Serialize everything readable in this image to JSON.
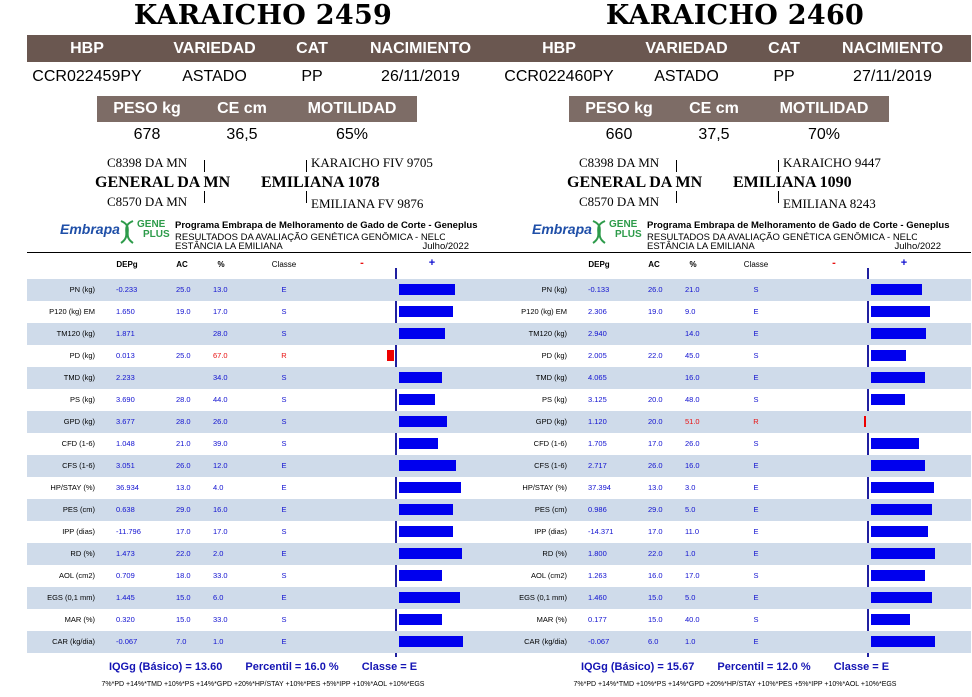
{
  "panels": [
    {
      "title": "KARAICHO 2459",
      "headers1": [
        "HBP",
        "VARIEDAD",
        "CAT",
        "NACIMIENTO"
      ],
      "values1": [
        "CCR022459PY",
        "ASTADO",
        "PP",
        "26/11/2019"
      ],
      "headers2": [
        "PESO kg",
        "CE cm",
        "MOTILIDAD"
      ],
      "values2": [
        "678",
        "36,5",
        "65%"
      ],
      "pedigree": {
        "sire_sire": "C8398 DA MN",
        "sire": "GENERAL DA MN",
        "sire_dam": "C8570 DA MN",
        "dam_sire": "KARAICHO FIV 9705",
        "dam": "EMILIANA 1078",
        "dam_dam": "EMILIANA FV 9876"
      },
      "program": {
        "logo_text": "Embrapa",
        "geneplus_1": "GENE",
        "geneplus_2": "PLUS",
        "name": "Programa Embrapa de Melhoramento de Gado de Corte - Geneplus",
        "results": "RESULTADOS DA AVALIAÇÃO GENÉTICA GENÔMICA - NELORE",
        "estancia": "ESTÂNCIA LA EMILIANA",
        "date": "Julho/2022"
      },
      "table_header": {
        "dep": "DEPg",
        "ac": "AC",
        "pct": "%",
        "cls": "Classe",
        "minus": "-",
        "plus": "+"
      },
      "rows": [
        {
          "label": "PN (kg)",
          "dep": "-0.233",
          "ac": "25.0",
          "pct": "13.0",
          "cls": "E",
          "bar": 0.87
        },
        {
          "label": "P120 (kg) EM",
          "dep": "1.650",
          "ac": "19.0",
          "pct": "17.0",
          "cls": "S",
          "bar": 0.83
        },
        {
          "label": "TM120 (kg)",
          "dep": "1.871",
          "ac": "",
          "pct": "28.0",
          "cls": "S",
          "bar": 0.72
        },
        {
          "label": "PD (kg)",
          "dep": "0.013",
          "ac": "25.0",
          "pct": "67.0",
          "cls": "R",
          "bar": -0.33
        },
        {
          "label": "TMD (kg)",
          "dep": "2.233",
          "ac": "",
          "pct": "34.0",
          "cls": "S",
          "bar": 0.66
        },
        {
          "label": "PS (kg)",
          "dep": "3.690",
          "ac": "28.0",
          "pct": "44.0",
          "cls": "S",
          "bar": 0.56
        },
        {
          "label": "GPD (kg)",
          "dep": "3.677",
          "ac": "28.0",
          "pct": "26.0",
          "cls": "S",
          "bar": 0.74
        },
        {
          "label": "CFD (1-6)",
          "dep": "1.048",
          "ac": "21.0",
          "pct": "39.0",
          "cls": "S",
          "bar": 0.61
        },
        {
          "label": "CFS (1-6)",
          "dep": "3.051",
          "ac": "26.0",
          "pct": "12.0",
          "cls": "E",
          "bar": 0.88
        },
        {
          "label": "HP/STAY (%)",
          "dep": "36.934",
          "ac": "13.0",
          "pct": "4.0",
          "cls": "E",
          "bar": 0.96
        },
        {
          "label": "PES (cm)",
          "dep": "0.638",
          "ac": "29.0",
          "pct": "16.0",
          "cls": "E",
          "bar": 0.84
        },
        {
          "label": "IPP (dias)",
          "dep": "-11.796",
          "ac": "17.0",
          "pct": "17.0",
          "cls": "S",
          "bar": 0.83
        },
        {
          "label": "RD (%)",
          "dep": "1.473",
          "ac": "22.0",
          "pct": "2.0",
          "cls": "E",
          "bar": 0.98
        },
        {
          "label": "AOL (cm2)",
          "dep": "0.709",
          "ac": "18.0",
          "pct": "33.0",
          "cls": "S",
          "bar": 0.67
        },
        {
          "label": "EGS (0,1 mm)",
          "dep": "1.445",
          "ac": "15.0",
          "pct": "6.0",
          "cls": "E",
          "bar": 0.94
        },
        {
          "label": "MAR (%)",
          "dep": "0.320",
          "ac": "15.0",
          "pct": "33.0",
          "cls": "S",
          "bar": 0.67
        },
        {
          "label": "CAR (kg/dia)",
          "dep": "-0.067",
          "ac": "7.0",
          "pct": "1.0",
          "cls": "E",
          "bar": 0.99
        }
      ],
      "footer": {
        "iqg": "IQGg (Básico) = 13.60",
        "percentil": "Percentil = 16.0 %",
        "classe": "Classe = E"
      },
      "formula": "7%*PD +14%*TMD +10%*PS +14%*GPD +20%*HP/STAY +10%*PES +5%*IPP +10%*AOL +10%*EGS"
    },
    {
      "title": "KARAICHO 2460",
      "headers1": [
        "HBP",
        "VARIEDAD",
        "CAT",
        "NACIMIENTO"
      ],
      "values1": [
        "CCR022460PY",
        "ASTADO",
        "PP",
        "27/11/2019"
      ],
      "headers2": [
        "PESO kg",
        "CE cm",
        "MOTILIDAD"
      ],
      "values2": [
        "660",
        "37,5",
        "70%"
      ],
      "pedigree": {
        "sire_sire": "C8398 DA MN",
        "sire": "GENERAL DA MN",
        "sire_dam": "C8570 DA MN",
        "dam_sire": "KARAICHO 9447",
        "dam": "EMILIANA 1090",
        "dam_dam": "EMILIANA 8243"
      },
      "program": {
        "logo_text": "Embrapa",
        "geneplus_1": "GENE",
        "geneplus_2": "PLUS",
        "name": "Programa Embrapa de Melhoramento de Gado de Corte - Geneplus",
        "results": "RESULTADOS DA AVALIAÇÃO GENÉTICA GENÔMICA - NELORE",
        "estancia": "ESTÂNCIA LA EMILIANA",
        "date": "Julho/2022"
      },
      "table_header": {
        "dep": "DEPg",
        "ac": "AC",
        "pct": "%",
        "cls": "Classe",
        "minus": "-",
        "plus": "+"
      },
      "rows": [
        {
          "label": "PN (kg)",
          "dep": "-0.133",
          "ac": "26.0",
          "pct": "21.0",
          "cls": "S",
          "bar": 0.79
        },
        {
          "label": "P120 (kg) EM",
          "dep": "2.306",
          "ac": "19.0",
          "pct": "9.0",
          "cls": "E",
          "bar": 0.91
        },
        {
          "label": "TM120 (kg)",
          "dep": "2.940",
          "ac": "",
          "pct": "14.0",
          "cls": "E",
          "bar": 0.86
        },
        {
          "label": "PD (kg)",
          "dep": "2.005",
          "ac": "22.0",
          "pct": "45.0",
          "cls": "S",
          "bar": 0.55
        },
        {
          "label": "TMD (kg)",
          "dep": "4.065",
          "ac": "",
          "pct": "16.0",
          "cls": "E",
          "bar": 0.84
        },
        {
          "label": "PS (kg)",
          "dep": "3.125",
          "ac": "20.0",
          "pct": "48.0",
          "cls": "S",
          "bar": 0.52
        },
        {
          "label": "GPD (kg)",
          "dep": "1.120",
          "ac": "20.0",
          "pct": "51.0",
          "cls": "R",
          "bar": -0.01
        },
        {
          "label": "CFD (1-6)",
          "dep": "1.705",
          "ac": "17.0",
          "pct": "26.0",
          "cls": "S",
          "bar": 0.74
        },
        {
          "label": "CFS (1-6)",
          "dep": "2.717",
          "ac": "26.0",
          "pct": "16.0",
          "cls": "E",
          "bar": 0.84
        },
        {
          "label": "HP/STAY (%)",
          "dep": "37.394",
          "ac": "13.0",
          "pct": "3.0",
          "cls": "E",
          "bar": 0.97
        },
        {
          "label": "PES (cm)",
          "dep": "0.986",
          "ac": "29.0",
          "pct": "5.0",
          "cls": "E",
          "bar": 0.95
        },
        {
          "label": "IPP (dias)",
          "dep": "-14.371",
          "ac": "17.0",
          "pct": "11.0",
          "cls": "E",
          "bar": 0.89
        },
        {
          "label": "RD (%)",
          "dep": "1.800",
          "ac": "22.0",
          "pct": "1.0",
          "cls": "E",
          "bar": 0.99
        },
        {
          "label": "AOL (cm2)",
          "dep": "1.263",
          "ac": "16.0",
          "pct": "17.0",
          "cls": "S",
          "bar": 0.83
        },
        {
          "label": "EGS (0,1 mm)",
          "dep": "1.460",
          "ac": "15.0",
          "pct": "5.0",
          "cls": "E",
          "bar": 0.95
        },
        {
          "label": "MAR (%)",
          "dep": "0.177",
          "ac": "15.0",
          "pct": "40.0",
          "cls": "S",
          "bar": 0.6
        },
        {
          "label": "CAR (kg/dia)",
          "dep": "-0.067",
          "ac": "6.0",
          "pct": "1.0",
          "cls": "E",
          "bar": 0.99
        }
      ],
      "footer": {
        "iqg": "IQGg (Básico) = 15.67",
        "percentil": "Percentil = 12.0 %",
        "classe": "Classe = E"
      },
      "formula": "7%*PD +14%*TMD +10%*PS +14%*GPD +20%*HP/STAY +10%*PES +5%*IPP +10%*AOL +10%*EGS"
    }
  ],
  "colors": {
    "header_bg": "#6a5750",
    "bar_positive": "#0000ee",
    "bar_negative": "#ee0000",
    "row_shade": "#cfdbea",
    "value_text": "#1010d0",
    "footer_text": "#1414b4"
  }
}
